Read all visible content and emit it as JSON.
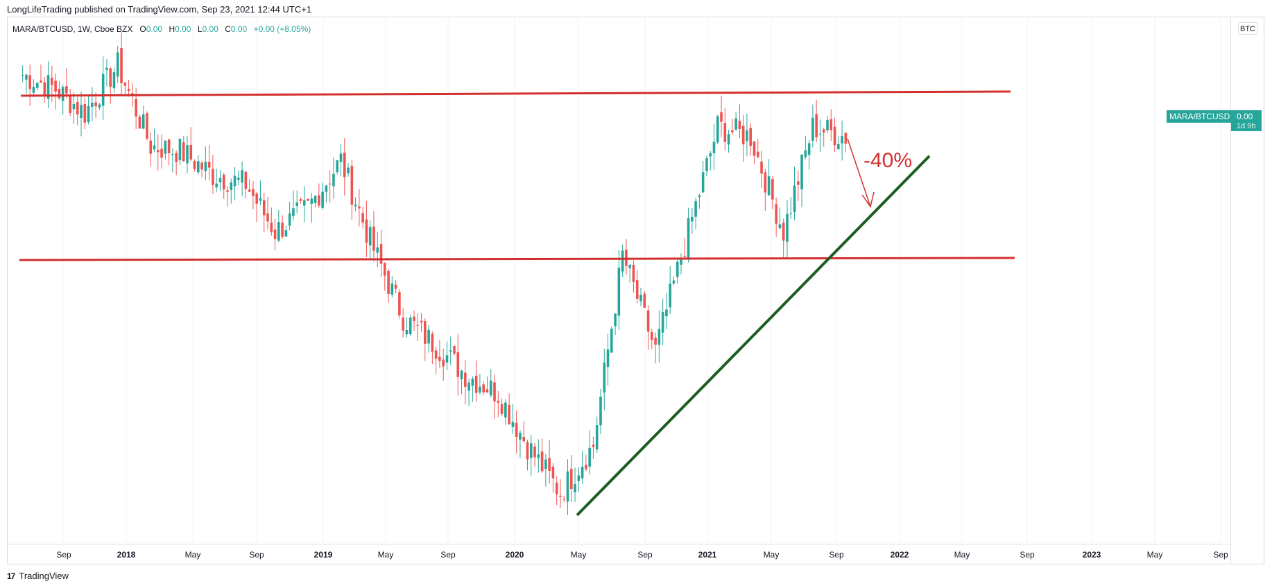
{
  "header": {
    "publisher": "LongLifeTrading published on TradingView.com, Sep 23, 2021 12:44 UTC+1"
  },
  "legend": {
    "symbol": "MARA/BTCUSD, 1W, Cboe BZX",
    "o_label": "O",
    "o_value": "0.00",
    "h_label": "H",
    "h_value": "0.00",
    "l_label": "L",
    "l_value": "0.00",
    "c_label": "C",
    "c_value": "0.00",
    "change": "+0.00 (+8.05%)"
  },
  "currency_button": "BTC",
  "price_scale": {
    "symbol_tag": "MARA/BTCUSD",
    "last_price": "0.00",
    "countdown": "1d 9h"
  },
  "footer": {
    "logo_mark": "17",
    "logo_text": "TradingView"
  },
  "colors": {
    "up": "#26a69a",
    "down": "#ef5350",
    "resistance": "#d32f2f",
    "trendline": "#1b5e20",
    "annotation": "#d32f2f"
  },
  "chart_data": {
    "type": "candlestick",
    "symbol": "MARA/BTCUSD",
    "interval": "1W",
    "x_axis_ticks": [
      "Sep",
      "2018",
      "May",
      "Sep",
      "2019",
      "May",
      "Sep",
      "2020",
      "May",
      "Sep",
      "2021",
      "May",
      "Sep",
      "2022",
      "May",
      "Sep",
      "2023",
      "May",
      "Sep"
    ],
    "x_axis_bold": [
      "2018",
      "2019",
      "2020",
      "2021",
      "2022",
      "2023"
    ],
    "drawings": [
      {
        "type": "horizontal-resistance",
        "color": "#d32f2f"
      },
      {
        "type": "horizontal-support",
        "color": "#d32f2f"
      },
      {
        "type": "rising-trendline",
        "color": "#1b5e20"
      },
      {
        "type": "arrow-down",
        "color": "#d32f2f"
      }
    ],
    "annotation": "-40%",
    "series": [
      {
        "date": "2017-07",
        "close_norm": 0.93
      },
      {
        "date": "2017-09",
        "close_norm": 0.9
      },
      {
        "date": "2017-11",
        "close_norm": 0.85
      },
      {
        "date": "2018-01",
        "close_norm": 0.95
      },
      {
        "date": "2018-03",
        "close_norm": 0.78
      },
      {
        "date": "2018-05",
        "close_norm": 0.77
      },
      {
        "date": "2018-07",
        "close_norm": 0.72
      },
      {
        "date": "2018-09",
        "close_norm": 0.7
      },
      {
        "date": "2018-11",
        "close_norm": 0.6
      },
      {
        "date": "2019-01",
        "close_norm": 0.65
      },
      {
        "date": "2019-03",
        "close_norm": 0.75
      },
      {
        "date": "2019-05",
        "close_norm": 0.58
      },
      {
        "date": "2019-07",
        "close_norm": 0.42
      },
      {
        "date": "2019-09",
        "close_norm": 0.36
      },
      {
        "date": "2019-11",
        "close_norm": 0.3
      },
      {
        "date": "2020-01",
        "close_norm": 0.26
      },
      {
        "date": "2020-03",
        "close_norm": 0.15
      },
      {
        "date": "2020-04",
        "close_norm": 0.05
      },
      {
        "date": "2020-06",
        "close_norm": 0.15
      },
      {
        "date": "2020-08",
        "close_norm": 0.55
      },
      {
        "date": "2020-10",
        "close_norm": 0.35
      },
      {
        "date": "2020-12",
        "close_norm": 0.6
      },
      {
        "date": "2021-02",
        "close_norm": 0.82
      },
      {
        "date": "2021-04",
        "close_norm": 0.8
      },
      {
        "date": "2021-05",
        "close_norm": 0.6
      },
      {
        "date": "2021-07",
        "close_norm": 0.82
      },
      {
        "date": "2021-09",
        "close_norm": 0.8
      }
    ]
  }
}
